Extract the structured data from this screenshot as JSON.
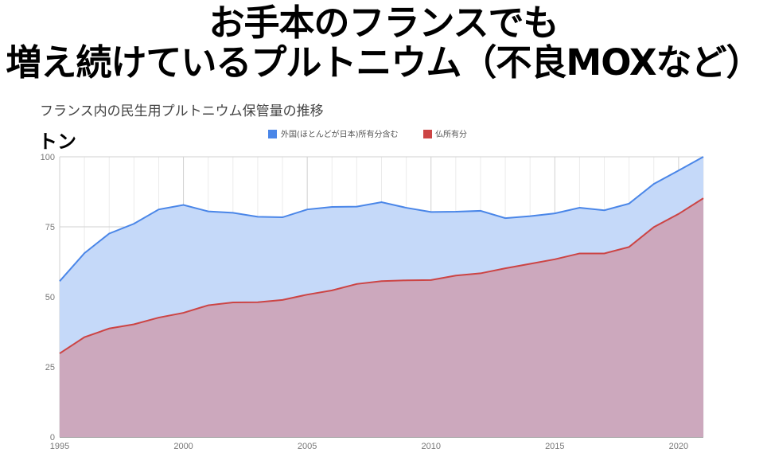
{
  "headline": {
    "line1": "お手本のフランスでも",
    "line2": "増え続けているプルトニウム（不良MOXなど）"
  },
  "chart_data": {
    "type": "area",
    "title": "フランス内の民生用プルトニウム保管量の推移",
    "ylabel": "トン",
    "xlabel": "",
    "x": [
      1995,
      1996,
      1997,
      1998,
      1999,
      2000,
      2001,
      2002,
      2003,
      2004,
      2005,
      2006,
      2007,
      2008,
      2009,
      2010,
      2011,
      2012,
      2013,
      2014,
      2015,
      2016,
      2017,
      2018,
      2019,
      2020,
      2021
    ],
    "xlim": [
      1995,
      2021
    ],
    "ylim": [
      0,
      100
    ],
    "xticks": [
      "1995",
      "2000",
      "2005",
      "2010",
      "2015",
      "2020"
    ],
    "yticks": [
      "0",
      "25",
      "50",
      "75",
      "100"
    ],
    "grid": true,
    "legend_position": "top",
    "series": [
      {
        "name": "外国(ほとんどが日本)所有分含む",
        "color": "#4a86e8",
        "fill": "#c5d9f9",
        "values": [
          55.6,
          65.6,
          72.6,
          76.1,
          81.2,
          82.8,
          80.5,
          80.0,
          78.6,
          78.4,
          81.2,
          82.1,
          82.2,
          83.8,
          81.8,
          80.3,
          80.4,
          80.7,
          78.1,
          78.8,
          79.8,
          81.8,
          80.9,
          83.3,
          90.3,
          95.1,
          100.0
        ]
      },
      {
        "name": "仏所有分",
        "color": "#cc4444",
        "fill": "#cca8bd",
        "values": [
          29.8,
          35.6,
          38.7,
          40.2,
          42.6,
          44.3,
          47.0,
          48.0,
          48.1,
          48.9,
          50.8,
          52.3,
          54.6,
          55.6,
          55.9,
          56.0,
          57.6,
          58.4,
          60.2,
          61.8,
          63.4,
          65.5,
          65.5,
          67.8,
          74.9,
          79.6,
          85.2
        ]
      }
    ]
  }
}
